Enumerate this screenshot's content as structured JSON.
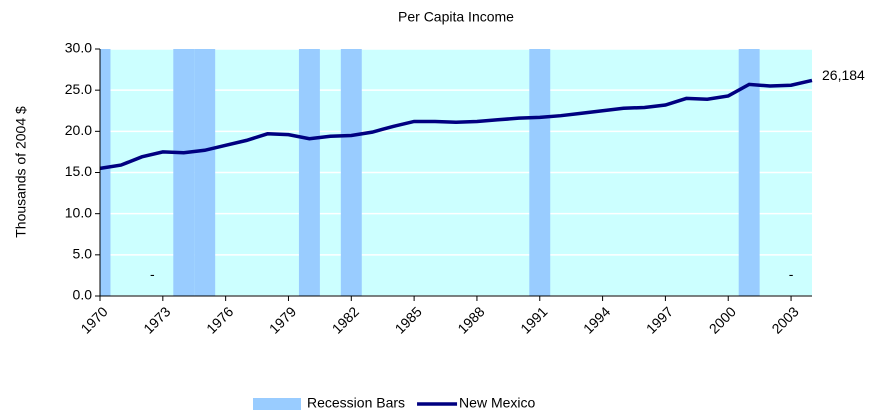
{
  "chart_data": {
    "type": "line",
    "title": "Per Capita Income",
    "ylabel": "Thousands of 2004 $",
    "x": [
      1970,
      1971,
      1972,
      1973,
      1974,
      1975,
      1976,
      1977,
      1978,
      1979,
      1980,
      1981,
      1982,
      1983,
      1984,
      1985,
      1986,
      1987,
      1988,
      1989,
      1990,
      1991,
      1992,
      1993,
      1994,
      1995,
      1996,
      1997,
      1998,
      1999,
      2000,
      2001,
      2002,
      2003,
      2004
    ],
    "series": [
      {
        "name": "Recession Bars",
        "type": "bar",
        "color": "#99ccff",
        "values": [
          30,
          null,
          null,
          null,
          30,
          30,
          null,
          null,
          null,
          null,
          30,
          null,
          30,
          null,
          null,
          null,
          null,
          null,
          null,
          null,
          null,
          30,
          null,
          null,
          null,
          null,
          null,
          null,
          null,
          null,
          null,
          30,
          null,
          null,
          null
        ]
      },
      {
        "name": "New Mexico",
        "type": "line",
        "color": "#000080",
        "values": [
          15.5,
          15.9,
          16.9,
          17.5,
          17.4,
          17.7,
          18.3,
          18.9,
          19.7,
          19.6,
          19.1,
          19.4,
          19.5,
          19.9,
          20.6,
          21.2,
          21.2,
          21.1,
          21.2,
          21.4,
          21.6,
          21.7,
          21.9,
          22.2,
          22.5,
          22.8,
          22.9,
          23.2,
          24.0,
          23.9,
          24.3,
          25.7,
          25.5,
          25.6,
          26.184
        ],
        "value_labels": [
          null,
          null,
          null,
          null,
          null,
          null,
          null,
          null,
          null,
          null,
          null,
          null,
          null,
          null,
          null,
          null,
          null,
          null,
          null,
          null,
          null,
          null,
          null,
          null,
          null,
          null,
          null,
          null,
          null,
          null,
          null,
          null,
          null,
          null,
          "26,184"
        ]
      }
    ],
    "annotations": [
      {
        "text": "-",
        "x": 1972.5,
        "y": 2.5
      },
      {
        "text": "-",
        "x": 2003,
        "y": 2.5
      }
    ],
    "xlim": [
      1970,
      2004
    ],
    "xticks": [
      1970,
      1973,
      1976,
      1979,
      1982,
      1985,
      1988,
      1991,
      1994,
      1997,
      2000,
      2003
    ],
    "ylim": [
      0,
      30
    ],
    "yticks": [
      {
        "value": 0,
        "label": "0.0"
      },
      {
        "value": 5,
        "label": "5.0"
      },
      {
        "value": 10,
        "label": "10.0"
      },
      {
        "value": 15,
        "label": "15.0"
      },
      {
        "value": 20,
        "label": "20.0"
      },
      {
        "value": 25,
        "label": "25.0"
      },
      {
        "value": 30,
        "label": "30.0"
      }
    ],
    "grid": true,
    "background": "#ccffff",
    "legend": "bottom"
  }
}
